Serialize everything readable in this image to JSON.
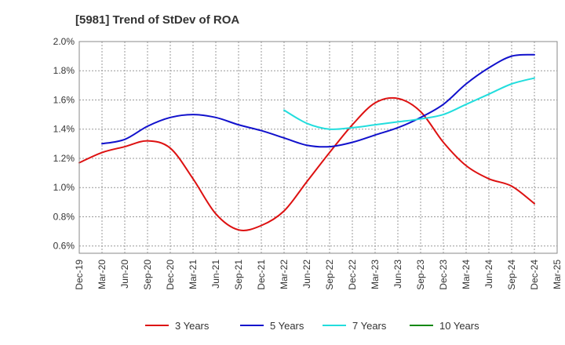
{
  "chart_data": {
    "type": "line",
    "title": "[5981]  Trend of StDev of ROA",
    "xlabel": "",
    "ylabel": "",
    "x_ticks": [
      "Dec-19",
      "Mar-20",
      "Jun-20",
      "Sep-20",
      "Dec-20",
      "Mar-21",
      "Jun-21",
      "Sep-21",
      "Dec-21",
      "Mar-22",
      "Jun-22",
      "Sep-22",
      "Dec-22",
      "Mar-23",
      "Jun-23",
      "Sep-23",
      "Dec-23",
      "Mar-24",
      "Jun-24",
      "Sep-24",
      "Dec-24",
      "Mar-25"
    ],
    "y_ticks": [
      "0.6%",
      "0.8%",
      "1.0%",
      "1.2%",
      "1.4%",
      "1.6%",
      "1.8%",
      "2.0%"
    ],
    "ylim": [
      0.55,
      2.0
    ],
    "grid": true,
    "legend_position": "bottom",
    "series": [
      {
        "name": "3 Years",
        "color": "#dd1111",
        "x": [
          "Dec-19",
          "Mar-20",
          "Jun-20",
          "Sep-20",
          "Dec-20",
          "Mar-21",
          "Jun-21",
          "Sep-21",
          "Dec-21",
          "Mar-22",
          "Jun-22",
          "Sep-22",
          "Dec-22",
          "Mar-23",
          "Jun-23",
          "Sep-23",
          "Dec-23",
          "Mar-24",
          "Jun-24",
          "Sep-24",
          "Dec-24"
        ],
        "values": [
          1.17,
          1.24,
          1.28,
          1.32,
          1.27,
          1.06,
          0.82,
          0.71,
          0.74,
          0.84,
          1.04,
          1.24,
          1.43,
          1.58,
          1.61,
          1.52,
          1.31,
          1.15,
          1.06,
          1.01,
          0.89
        ]
      },
      {
        "name": "5 Years",
        "color": "#1111cc",
        "x": [
          "Mar-20",
          "Jun-20",
          "Sep-20",
          "Dec-20",
          "Mar-21",
          "Jun-21",
          "Sep-21",
          "Dec-21",
          "Mar-22",
          "Jun-22",
          "Sep-22",
          "Dec-22",
          "Mar-23",
          "Jun-23",
          "Sep-23",
          "Dec-23",
          "Mar-24",
          "Jun-24",
          "Sep-24",
          "Dec-24"
        ],
        "values": [
          1.3,
          1.33,
          1.42,
          1.48,
          1.5,
          1.48,
          1.43,
          1.39,
          1.34,
          1.29,
          1.28,
          1.31,
          1.36,
          1.41,
          1.48,
          1.57,
          1.71,
          1.82,
          1.9,
          1.91
        ]
      },
      {
        "name": "7 Years",
        "color": "#22dddd",
        "x": [
          "Mar-22",
          "Jun-22",
          "Sep-22",
          "Dec-22",
          "Mar-23",
          "Jun-23",
          "Sep-23",
          "Dec-23",
          "Mar-24",
          "Jun-24",
          "Sep-24",
          "Dec-24"
        ],
        "values": [
          1.53,
          1.44,
          1.4,
          1.41,
          1.43,
          1.45,
          1.47,
          1.5,
          1.57,
          1.64,
          1.71,
          1.75
        ]
      },
      {
        "name": "10 Years",
        "color": "#118811",
        "x": [],
        "values": []
      }
    ]
  }
}
